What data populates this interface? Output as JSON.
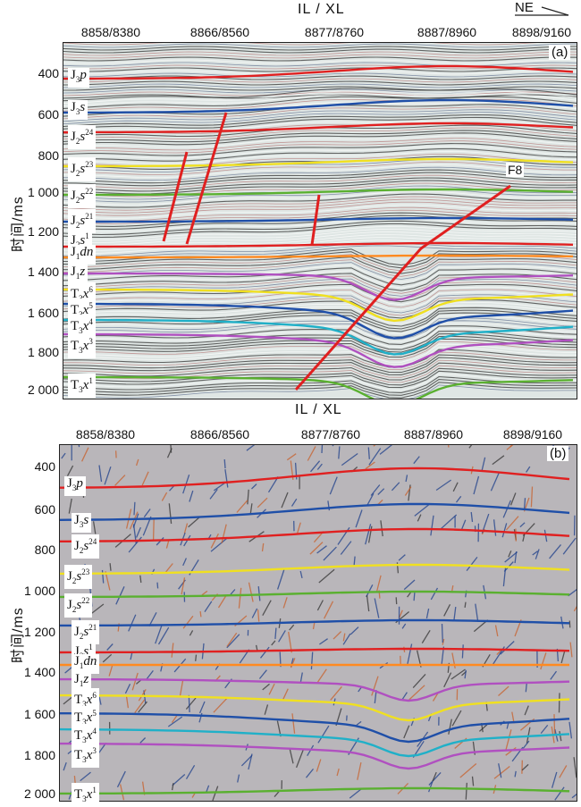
{
  "top_axis_title": "IL / XL",
  "bottom_axis_title": "IL / XL",
  "north_label": "NE",
  "y_axis_label": "时间/ms",
  "top_ticks": [
    "8858/8380",
    "8866/8560",
    "8877/8760",
    "8887/8960",
    "8898/9160"
  ],
  "y_ticks": [
    "400",
    "600",
    "800",
    "1 000",
    "1 200",
    "1 400",
    "1 600",
    "1 800",
    "2 000"
  ],
  "panel_a": {
    "label": "(a)",
    "fault_label": "F8"
  },
  "panel_b": {
    "label": "(b)"
  },
  "horizon_colors": {
    "J3p": "#e02020",
    "J3s": "#1f4fa8",
    "J2s24": "#e02020",
    "J2s23": "#f0e020",
    "J2s22": "#5ab030",
    "J2s21": "#1f4fa8",
    "J2s1": "#e02020",
    "J1dn": "#ff8a20",
    "J1z": "#b050c0",
    "T3x6": "#f0e020",
    "T3x5": "#1f4fa8",
    "T3x4": "#20b0c8",
    "T3x3": "#b050c0",
    "T3x1": "#5ab030",
    "fault": "#e02020"
  },
  "horizon_labels_a": [
    {
      "base": "J",
      "sub": "3",
      "it": "p",
      "sup": ""
    },
    {
      "base": "J",
      "sub": "3",
      "it": "s",
      "sup": ""
    },
    {
      "base": "J",
      "sub": "2",
      "it": "s",
      "sup": "24"
    },
    {
      "base": "J",
      "sub": "2",
      "it": "s",
      "sup": "23"
    },
    {
      "base": "J",
      "sub": "2",
      "it": "s",
      "sup": "22"
    },
    {
      "base": "J",
      "sub": "2",
      "it": "s",
      "sup": "21"
    },
    {
      "base": "J",
      "sub": "2",
      "it": "s",
      "sup": "1"
    },
    {
      "base": "J",
      "sub": "1",
      "it": "dn",
      "sup": ""
    },
    {
      "base": "J",
      "sub": "1",
      "it": "z",
      "sup": ""
    },
    {
      "base": "T",
      "sub": "3",
      "it": "x",
      "sup": "6"
    },
    {
      "base": "T",
      "sub": "3",
      "it": "x",
      "sup": "5"
    },
    {
      "base": "T",
      "sub": "3",
      "it": "x",
      "sup": "4"
    },
    {
      "base": "T",
      "sub": "3",
      "it": "x",
      "sup": "3"
    },
    {
      "base": "T",
      "sub": "3",
      "it": "x",
      "sup": "1"
    }
  ],
  "horizon_labels_b": [
    {
      "base": "J",
      "sub": "3",
      "it": "p",
      "sup": ""
    },
    {
      "base": "J",
      "sub": "3",
      "it": "s",
      "sup": ""
    },
    {
      "base": "J",
      "sub": "2",
      "it": "s",
      "sup": "24"
    },
    {
      "base": "J",
      "sub": "2",
      "it": "s",
      "sup": "23"
    },
    {
      "base": "J",
      "sub": "2",
      "it": "s",
      "sup": "22"
    },
    {
      "base": "J",
      "sub": "2",
      "it": "s",
      "sup": "21"
    },
    {
      "base": "J",
      "sub": "2",
      "it": "s",
      "sup": "1"
    },
    {
      "base": "J",
      "sub": "1",
      "it": "dn",
      "sup": ""
    },
    {
      "base": "J",
      "sub": "1",
      "it": "z",
      "sup": ""
    },
    {
      "base": "T",
      "sub": "3",
      "it": "x",
      "sup": "6"
    },
    {
      "base": "T",
      "sub": "3",
      "it": "x",
      "sup": "5"
    },
    {
      "base": "T",
      "sub": "3",
      "it": "x",
      "sup": "4"
    },
    {
      "base": "T",
      "sub": "3",
      "it": "x",
      "sup": "3"
    },
    {
      "base": "T",
      "sub": "3",
      "it": "x",
      "sup": "1"
    }
  ]
}
